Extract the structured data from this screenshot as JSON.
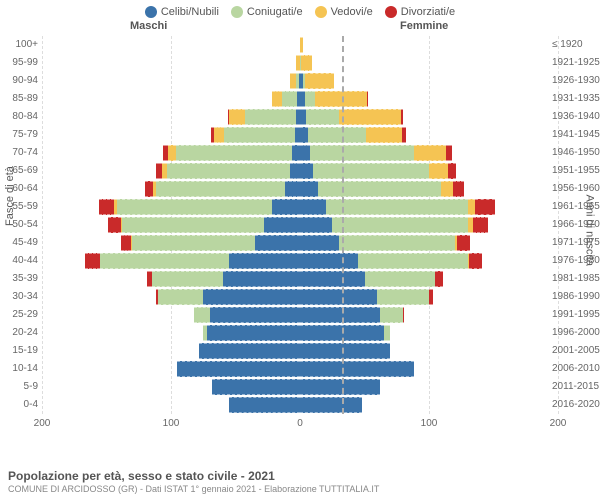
{
  "chart": {
    "type": "population-pyramid",
    "legend": [
      {
        "label": "Celibi/Nubili",
        "color": "#3b73aa"
      },
      {
        "label": "Coniugati/e",
        "color": "#b9d6a1"
      },
      {
        "label": "Vedovi/e",
        "color": "#f5c453"
      },
      {
        "label": "Divorziati/e",
        "color": "#c92a2a"
      }
    ],
    "header_male": "Maschi",
    "header_female": "Femmine",
    "ylabel_left": "Fasce di età",
    "ylabel_right": "Anni di nascita",
    "xticks": [
      200,
      100,
      0,
      100,
      200
    ],
    "xmax": 200,
    "colors": {
      "celibi": "#3b73aa",
      "coniugati": "#b9d6a1",
      "vedovi": "#f5c453",
      "divorziati": "#c92a2a",
      "grid": "#dddddd",
      "divider": "#aaaaaa",
      "bg": "#ffffff"
    },
    "rows": [
      {
        "age": "100+",
        "year": "≤ 1920",
        "m": [
          0,
          0,
          0,
          0
        ],
        "f": [
          0,
          0,
          2,
          0
        ]
      },
      {
        "age": "95-99",
        "year": "1921-1925",
        "m": [
          0,
          0,
          3,
          0
        ],
        "f": [
          0,
          1,
          8,
          0
        ]
      },
      {
        "age": "90-94",
        "year": "1926-1930",
        "m": [
          1,
          2,
          5,
          0
        ],
        "f": [
          2,
          2,
          22,
          0
        ]
      },
      {
        "age": "85-89",
        "year": "1931-1935",
        "m": [
          2,
          12,
          8,
          0
        ],
        "f": [
          4,
          8,
          40,
          1
        ]
      },
      {
        "age": "80-84",
        "year": "1936-1940",
        "m": [
          3,
          40,
          12,
          1
        ],
        "f": [
          5,
          25,
          48,
          2
        ]
      },
      {
        "age": "75-79",
        "year": "1941-1945",
        "m": [
          4,
          55,
          8,
          2
        ],
        "f": [
          6,
          45,
          28,
          3
        ]
      },
      {
        "age": "70-74",
        "year": "1946-1950",
        "m": [
          6,
          90,
          6,
          4
        ],
        "f": [
          8,
          80,
          25,
          5
        ]
      },
      {
        "age": "65-69",
        "year": "1951-1955",
        "m": [
          8,
          95,
          4,
          5
        ],
        "f": [
          10,
          90,
          15,
          6
        ]
      },
      {
        "age": "60-64",
        "year": "1956-1960",
        "m": [
          12,
          100,
          2,
          6
        ],
        "f": [
          14,
          95,
          10,
          8
        ]
      },
      {
        "age": "55-59",
        "year": "1961-1965",
        "m": [
          22,
          120,
          2,
          12
        ],
        "f": [
          20,
          110,
          6,
          15
        ]
      },
      {
        "age": "50-54",
        "year": "1966-1970",
        "m": [
          28,
          110,
          1,
          10
        ],
        "f": [
          25,
          105,
          4,
          12
        ]
      },
      {
        "age": "45-49",
        "year": "1971-1975",
        "m": [
          35,
          95,
          1,
          8
        ],
        "f": [
          30,
          90,
          2,
          10
        ]
      },
      {
        "age": "40-44",
        "year": "1976-1980",
        "m": [
          55,
          100,
          0,
          12
        ],
        "f": [
          45,
          85,
          1,
          10
        ]
      },
      {
        "age": "35-39",
        "year": "1981-1985",
        "m": [
          60,
          55,
          0,
          4
        ],
        "f": [
          50,
          55,
          0,
          6
        ]
      },
      {
        "age": "30-34",
        "year": "1986-1990",
        "m": [
          75,
          35,
          0,
          2
        ],
        "f": [
          60,
          40,
          0,
          3
        ]
      },
      {
        "age": "25-29",
        "year": "1991-1995",
        "m": [
          70,
          12,
          0,
          0
        ],
        "f": [
          62,
          18,
          0,
          1
        ]
      },
      {
        "age": "20-24",
        "year": "1996-2000",
        "m": [
          72,
          3,
          0,
          0
        ],
        "f": [
          65,
          5,
          0,
          0
        ]
      },
      {
        "age": "15-19",
        "year": "2001-2005",
        "m": [
          78,
          0,
          0,
          0
        ],
        "f": [
          70,
          0,
          0,
          0
        ]
      },
      {
        "age": "10-14",
        "year": "2006-2010",
        "m": [
          95,
          0,
          0,
          0
        ],
        "f": [
          88,
          0,
          0,
          0
        ]
      },
      {
        "age": "5-9",
        "year": "2011-2015",
        "m": [
          68,
          0,
          0,
          0
        ],
        "f": [
          62,
          0,
          0,
          0
        ]
      },
      {
        "age": "0-4",
        "year": "2016-2020",
        "m": [
          55,
          0,
          0,
          0
        ],
        "f": [
          48,
          0,
          0,
          0
        ]
      }
    ]
  },
  "footer": {
    "title": "Popolazione per età, sesso e stato civile - 2021",
    "subtitle": "COMUNE DI ARCIDOSSO (GR) - Dati ISTAT 1° gennaio 2021 - Elaborazione TUTTITALIA.IT"
  }
}
